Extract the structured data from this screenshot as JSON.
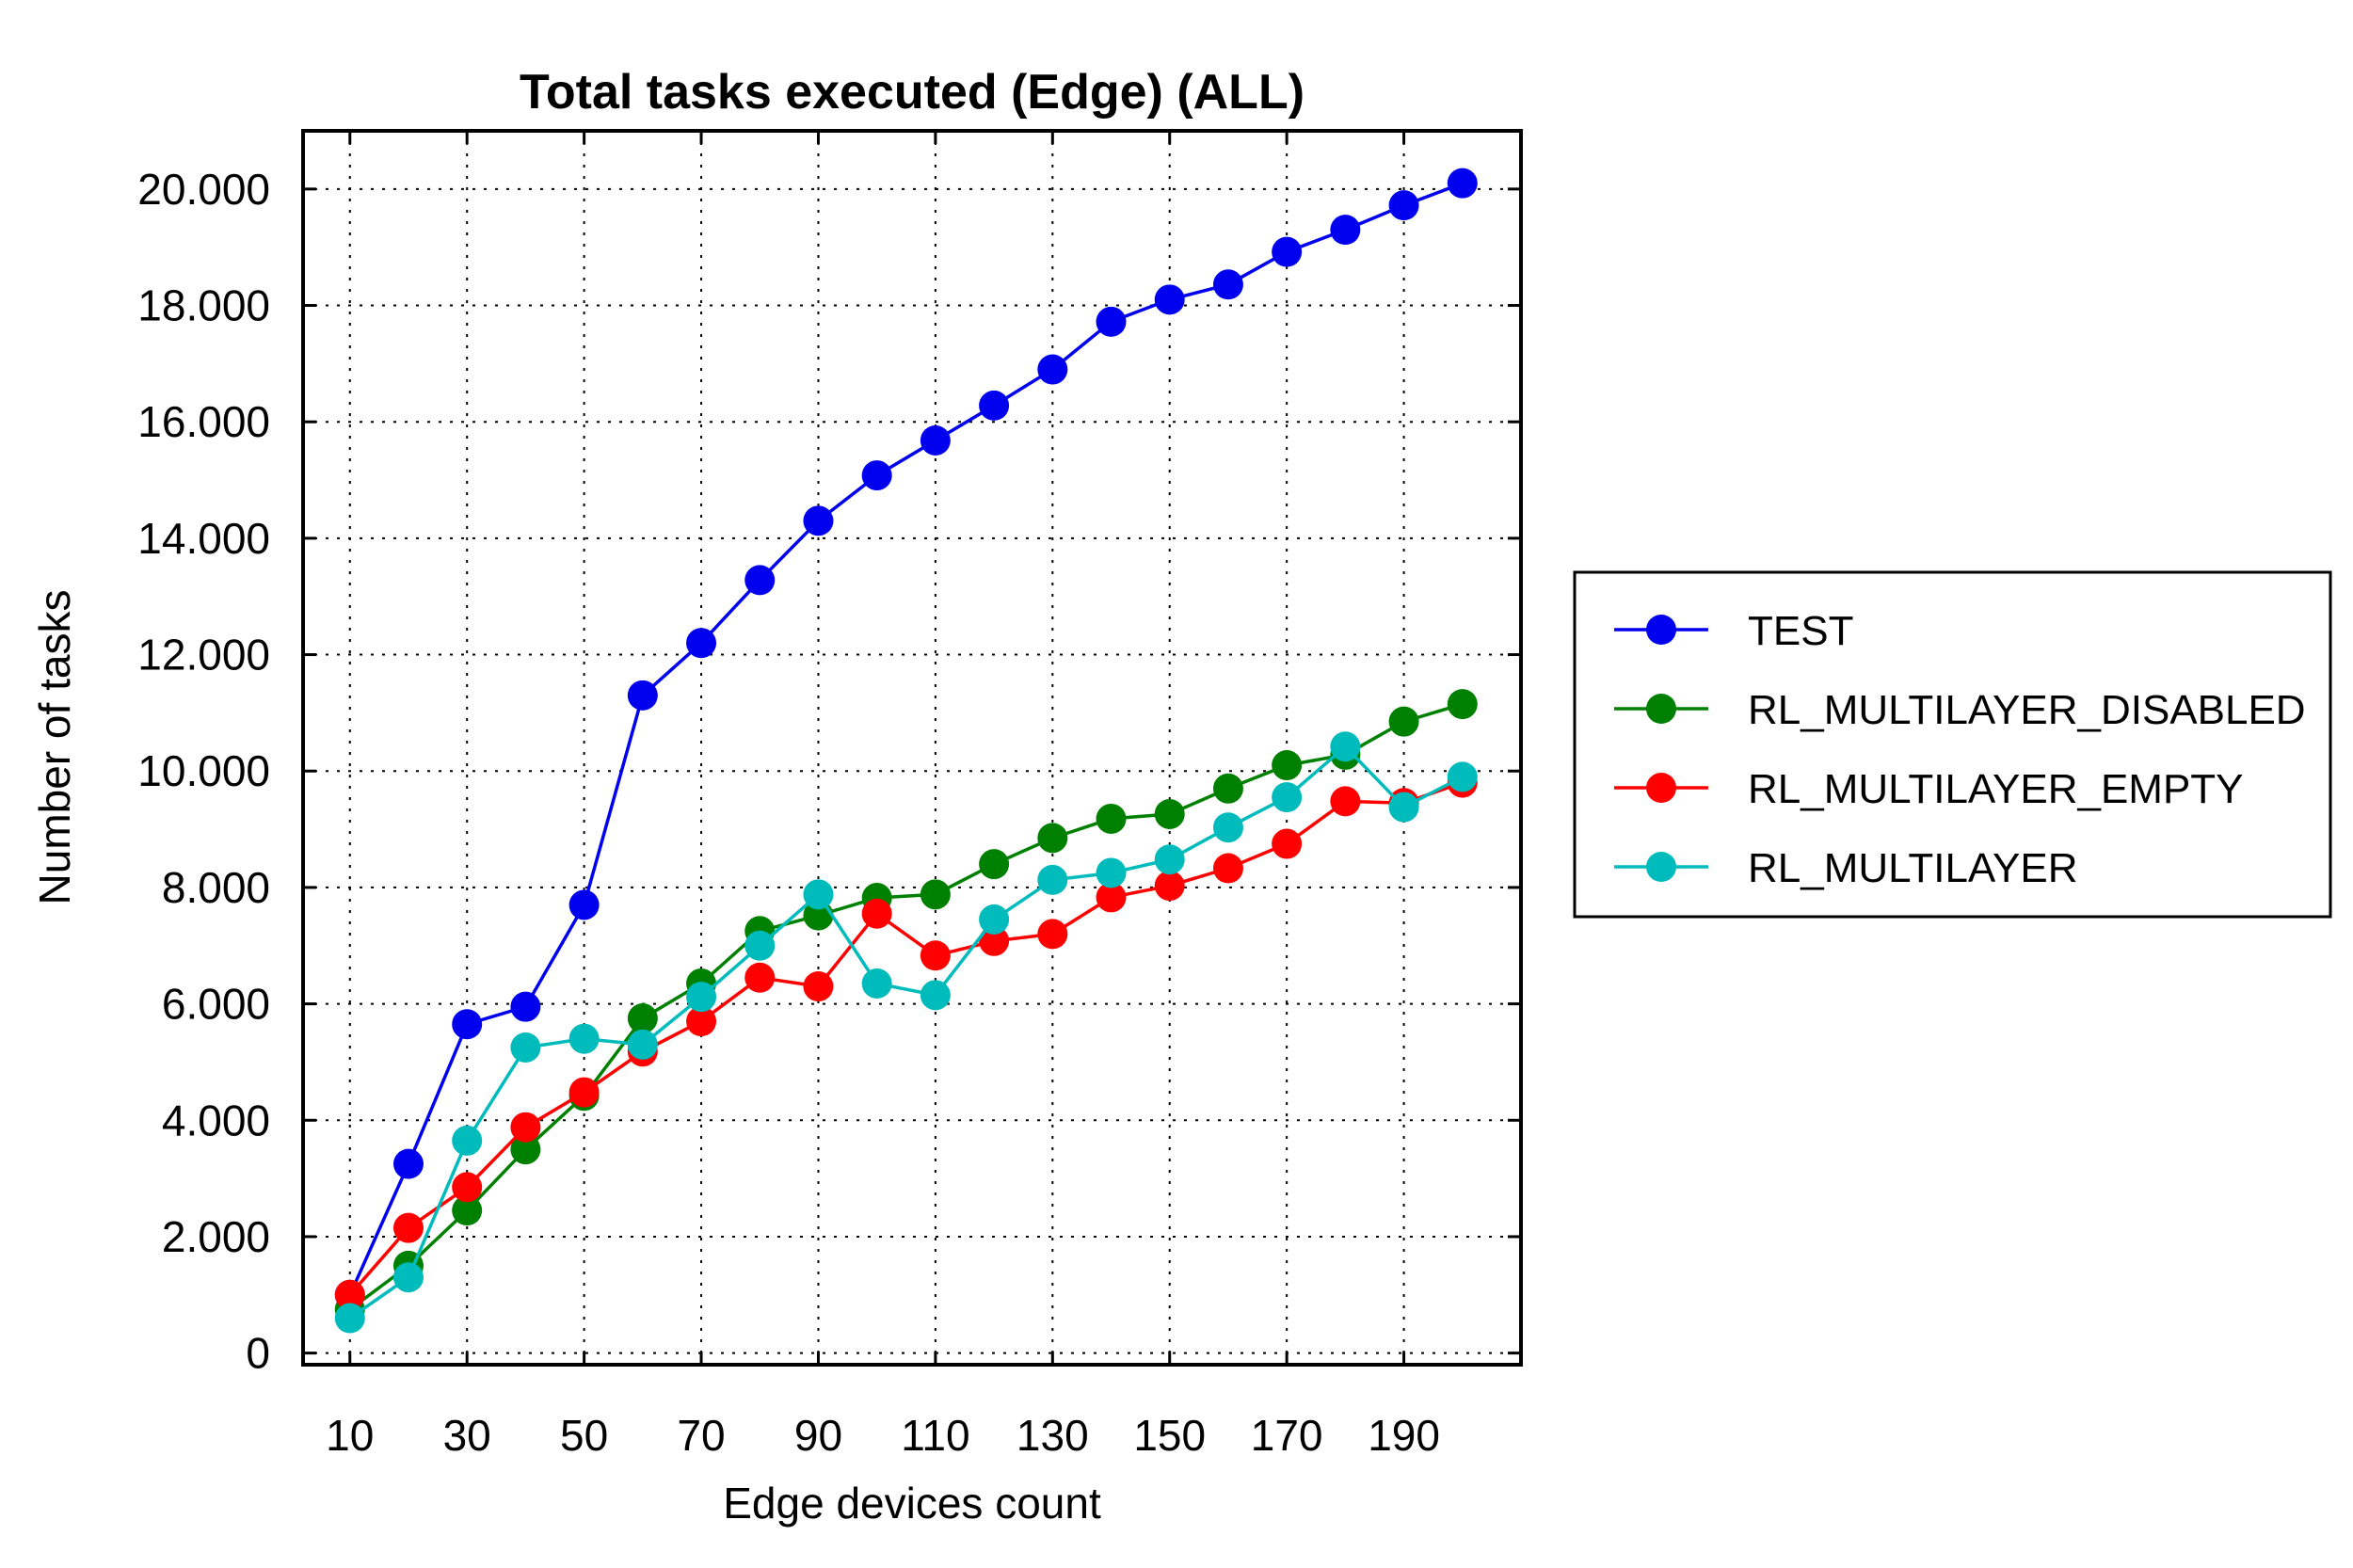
{
  "chart_data": {
    "type": "line",
    "title": "Total tasks executed (Edge) (ALL)",
    "xlabel": "Edge devices count",
    "ylabel": "Number of tasks",
    "xlim": [
      2,
      210
    ],
    "ylim": [
      -200,
      21000
    ],
    "x_ticks": [
      10,
      30,
      50,
      70,
      90,
      110,
      130,
      150,
      170,
      190
    ],
    "x_tick_labels": [
      "10",
      "30",
      "50",
      "70",
      "90",
      "110",
      "130",
      "150",
      "170",
      "190"
    ],
    "y_ticks": [
      0,
      2000,
      4000,
      6000,
      8000,
      10000,
      12000,
      14000,
      16000,
      18000,
      20000
    ],
    "y_tick_labels": [
      "0",
      "2.000",
      "4.000",
      "6.000",
      "8.000",
      "10.000",
      "12.000",
      "14.000",
      "16.000",
      "18.000",
      "20.000"
    ],
    "grid": true,
    "grid_style": "dotted",
    "legend_position": "outside-right",
    "x": [
      10,
      20,
      30,
      40,
      50,
      60,
      70,
      80,
      90,
      100,
      110,
      120,
      130,
      140,
      150,
      160,
      170,
      180,
      190,
      200
    ],
    "series": [
      {
        "name": "TEST",
        "color": "#0000ee",
        "values": [
          1000,
          3250,
          5650,
          5950,
          7700,
          11300,
          12200,
          13280,
          14300,
          15080,
          15680,
          16280,
          16900,
          17720,
          18100,
          18360,
          18920,
          19300,
          19720,
          20100
        ]
      },
      {
        "name": "RL_MULTILAYER_DISABLED",
        "color": "#008000",
        "values": [
          750,
          1500,
          2450,
          3500,
          4420,
          5750,
          6350,
          7250,
          7520,
          7820,
          7880,
          8400,
          8850,
          9180,
          9260,
          9700,
          10100,
          10280,
          10850,
          11150
        ]
      },
      {
        "name": "RL_MULTILAYER_EMPTY",
        "color": "#ff0000",
        "values": [
          1000,
          2150,
          2850,
          3880,
          4480,
          5180,
          5700,
          6450,
          6300,
          7550,
          6830,
          7080,
          7200,
          7830,
          8030,
          8330,
          8750,
          9480,
          9450,
          9800
        ]
      },
      {
        "name": "RL_MULTILAYER",
        "color": "#00bbbb",
        "values": [
          600,
          1300,
          3650,
          5250,
          5400,
          5300,
          6120,
          7000,
          7880,
          6350,
          6150,
          7450,
          8130,
          8250,
          8480,
          9030,
          9550,
          10420,
          9380,
          9900
        ]
      }
    ]
  }
}
